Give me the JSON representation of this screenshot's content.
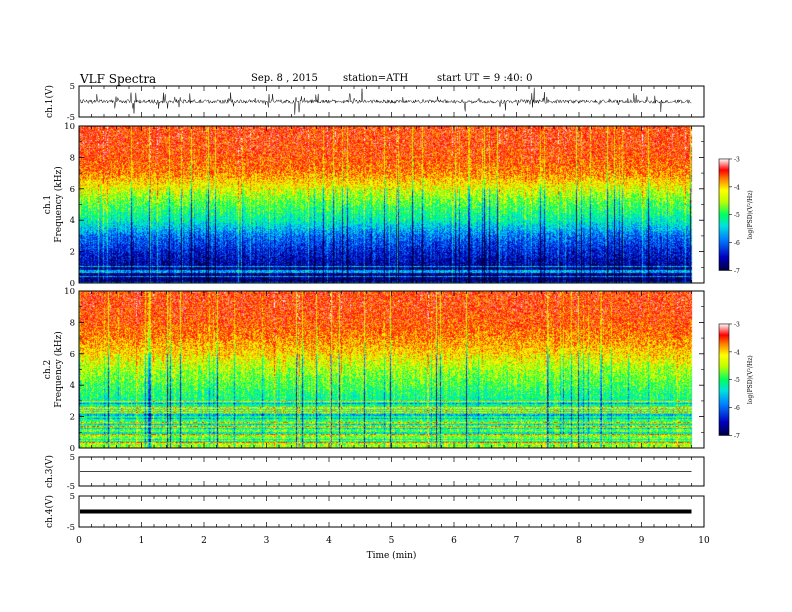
{
  "header": {
    "title": "VLF Spectra",
    "date": "Sep. 8 , 2015",
    "station": "station=ATH",
    "start": "start UT = 9 :40: 0"
  },
  "colors": {
    "spectrogram_scale": [
      "#000040",
      "#0000a0",
      "#0040ff",
      "#00c0ff",
      "#00ff80",
      "#a0ff00",
      "#ffff00",
      "#ff8000",
      "#ff0000",
      "#ffffff"
    ],
    "axes": "#000000",
    "waveform": "#000000"
  },
  "chart_data": [
    {
      "type": "line",
      "name": "ch1-waveform",
      "ylabel": "ch.1(V)",
      "ylim": [
        -5,
        5
      ],
      "yticks": [
        "5",
        "-5"
      ],
      "xlim": [
        0,
        10
      ],
      "description_values": "noisy waveform, baseline near 0 V with spikes up to about ±3 V",
      "x": [
        0,
        1,
        2,
        3,
        4,
        5,
        6,
        7,
        8,
        9,
        9.8
      ],
      "y": [
        0,
        0.2,
        -0.1,
        0.1,
        0,
        0.2,
        -0.1,
        0.1,
        0,
        0.1,
        0
      ]
    },
    {
      "type": "heatmap",
      "name": "ch1-spectrogram",
      "ylabel": "ch.1\nFrequency (kHz)",
      "ylim": [
        0,
        10
      ],
      "yticks": [
        "0",
        "2",
        "4",
        "6",
        "8",
        "10"
      ],
      "xlim": [
        0,
        10
      ],
      "data_end_min": 9.8,
      "colorbar": {
        "label": "log(PSD)(V²/Hz)",
        "range": [
          -7,
          -3
        ],
        "ticks": [
          "-3",
          "-4",
          "-5",
          "-6",
          "-7"
        ]
      },
      "log_psd_by_freq_khz": {
        "0": -6.9,
        "1": -6.7,
        "2": -6.4,
        "3": -6.0,
        "4": -5.3,
        "5": -4.9,
        "6": -4.4,
        "7": -3.9,
        "8": -3.7,
        "9": -3.6,
        "10": -3.6
      }
    },
    {
      "type": "heatmap",
      "name": "ch2-spectrogram",
      "ylabel": "ch.2\nFrequency (kHz)",
      "ylim": [
        0,
        10
      ],
      "yticks": [
        "0",
        "2",
        "4",
        "6",
        "8",
        "10"
      ],
      "xlim": [
        0,
        10
      ],
      "data_end_min": 9.8,
      "colorbar": {
        "label": "log(PSD)(V²/Hz)",
        "range": [
          -7,
          -3
        ],
        "ticks": [
          "-3",
          "-4",
          "-5",
          "-6",
          "-7"
        ]
      },
      "log_psd_by_freq_khz": {
        "0": -4.6,
        "1": -4.8,
        "2": -5.1,
        "3": -5.2,
        "4": -4.9,
        "5": -4.6,
        "6": -4.2,
        "7": -3.9,
        "8": -3.7,
        "9": -3.6,
        "10": -3.6
      }
    },
    {
      "type": "line",
      "name": "ch3-waveform",
      "ylabel": "ch.3(V)",
      "ylim": [
        -5,
        5
      ],
      "yticks": [
        "5",
        "-5"
      ],
      "xlim": [
        0,
        10
      ],
      "x": [
        0,
        9.8
      ],
      "y": [
        0,
        0
      ]
    },
    {
      "type": "line",
      "name": "ch4-waveform",
      "ylabel": "ch.4(V)",
      "ylim": [
        -5,
        5
      ],
      "yticks": [
        "5",
        "-5"
      ],
      "xlim": [
        0,
        10
      ],
      "x": [
        0,
        9.8
      ],
      "y": [
        0,
        0
      ]
    }
  ],
  "x_axis": {
    "label": "Time (min)",
    "ticks": [
      "0",
      "1",
      "2",
      "3",
      "4",
      "5",
      "6",
      "7",
      "8",
      "9",
      "10"
    ]
  }
}
